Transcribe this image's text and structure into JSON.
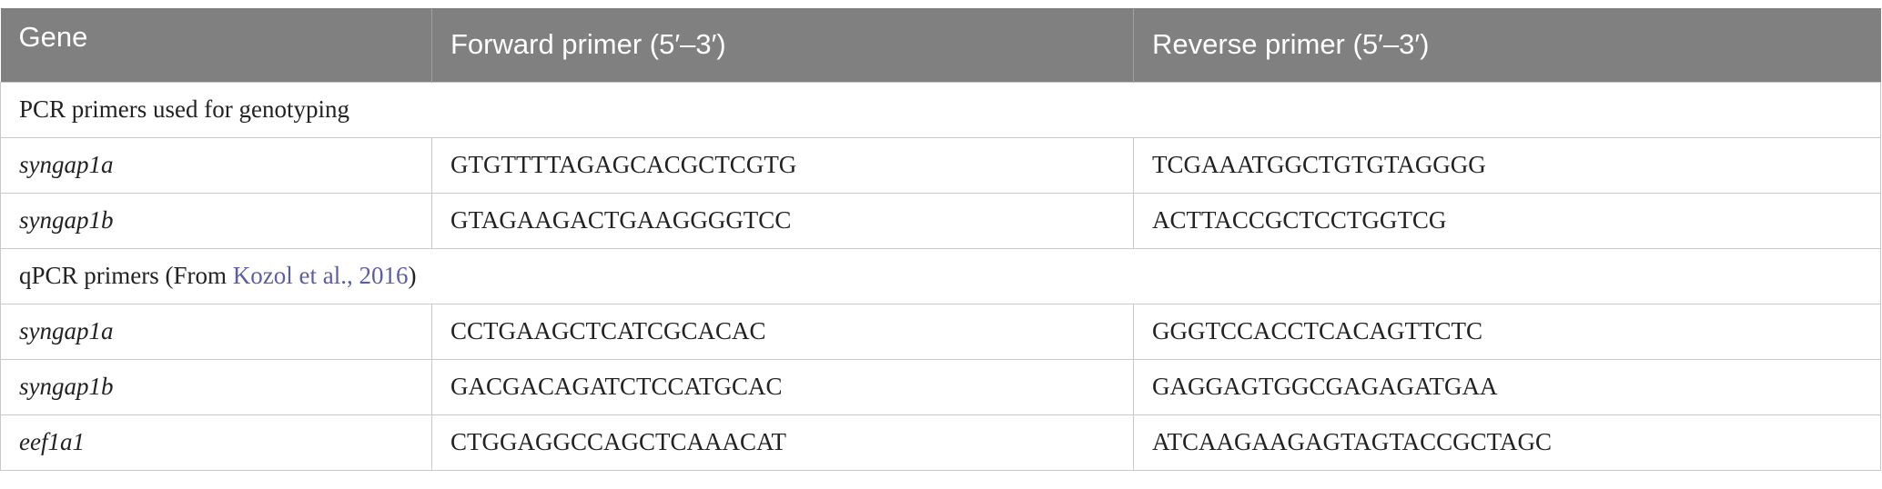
{
  "table": {
    "header": [
      "Gene",
      "Forward primer (5′–3′)",
      "Reverse primer (5′–3′)"
    ],
    "sections": [
      {
        "title": "PCR primers used for genotyping",
        "rows": [
          [
            "syngap1a",
            "GTGTTTTAGAGCACGCTCGTG",
            "TCGAAATGGCTGTGTAGGGG"
          ],
          [
            "syngap1b",
            "GTAGAAGACTGAAGGGGTCC",
            "ACTTACCGCTCCTGGTCG"
          ]
        ]
      },
      {
        "title": {
          "before": "qPCR primers (From ",
          "link": "Kozol et al., 2016",
          "after": ")"
        },
        "rows": [
          [
            "syngap1a",
            "CCTGAAGCTCATCGCACAC",
            "GGGTCCACCTCACAGTTCTC"
          ],
          [
            "syngap1b",
            "GACGACAGATCTCCATGCAC",
            "GAGGAGTGGCGAGAGATGAA"
          ],
          [
            "eef1a1",
            "CTGGAGGCCAGCTCAAACAT",
            "ATCAAGAAGAGTAGTACCGCTAGC"
          ]
        ]
      }
    ]
  }
}
